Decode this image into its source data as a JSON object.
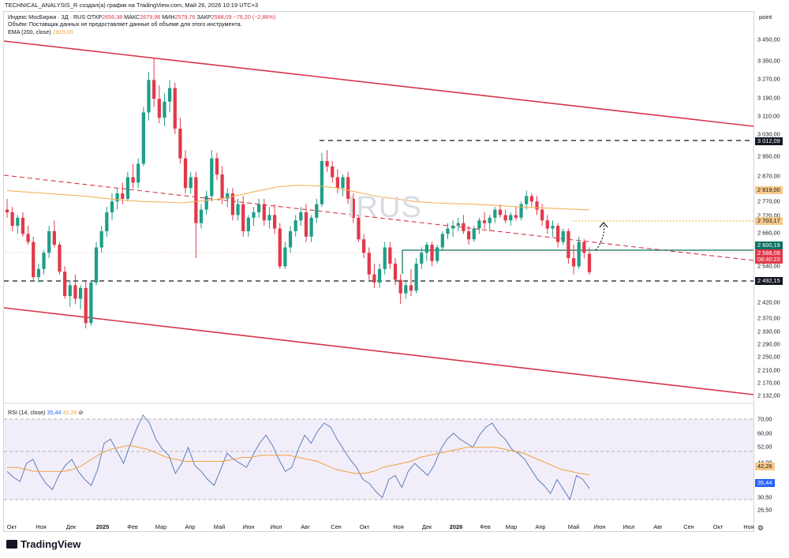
{
  "header": {
    "text": "TECHNICAL_ANALYSIS_R создал(а) график на TradingView.com, Май 26, 2026 10:19 UTC+3"
  },
  "legend": {
    "line1_prefix": "Индекс МосБиржи · 3Д · RUS",
    "open_label": "ОТКР",
    "open": "2656,38",
    "high_label": "МАКС",
    "high": "2679,98",
    "low_label": "МИН",
    "low": "2579,76",
    "close_label": "ЗАКР",
    "close": "2588,09",
    "change": "−76,20 (−2,86%)",
    "volume_note": "Объём: Поставщик данных не предоставляет данные об объеме для этого инструмента.",
    "ema_label": "EMA (200, close)",
    "ema_value": "2819,00"
  },
  "rsi_legend": {
    "label": "RSI (14, close)",
    "value1": "35,44",
    "value2": "42,26"
  },
  "watermark": "IRUS",
  "price_unit": "point",
  "price_axis_labels": [
    "3 450,00",
    "3 350,00",
    "3 270,00",
    "3 190,00",
    "3 110,00",
    "3 030,00",
    "2 950,00",
    "2 870,00",
    "2 770,00",
    "2 720,00",
    "2 660,00",
    "2 540,00",
    "2 420,00",
    "2 370,00",
    "2 330,00",
    "2 290,00",
    "2 250,00",
    "2 210,00",
    "2 170,00"
  ],
  "price_tags": {
    "res_top": "3 012,09",
    "ema": "2 819,00",
    "target": "2 703,17",
    "support_green": "2 600,19",
    "last": "2 588,09",
    "timer": "08:40:23",
    "support_low": "2 492,15",
    "channel_low": "2 132,00"
  },
  "rsi_axis_labels": [
    "70,00",
    "60,00",
    "52,00",
    "44,00",
    "30,50",
    "26,50"
  ],
  "rsi_tags": {
    "signal": "42,26",
    "rsi": "35,44"
  },
  "time_axis": [
    "Окт",
    "Ноя",
    "Дек",
    "2025",
    "Фев",
    "Мар",
    "Апр",
    "Май",
    "Июн",
    "Июл",
    "Авг",
    "Сен",
    "Окт",
    "Ноя",
    "Дек",
    "2026",
    "Фев",
    "Мар",
    "Апр",
    "Май",
    "Июн",
    "Июл",
    "Авг",
    "Сен",
    "Окт",
    "Ноя"
  ],
  "footer": {
    "logo": "TradingView"
  },
  "colors": {
    "up": "#1f9e89",
    "down": "#e1394a",
    "ema": "#f2b25c",
    "channel": "#d7354a",
    "rsi": "#5b7fbf",
    "rsi_ma": "#f0a040"
  },
  "chart_data": {
    "type": "candlestick",
    "title": "Индекс МосБиржи · 3Д · RUS",
    "ylim": [
      2100,
      3480
    ],
    "candles": [
      {
        "o": 2820,
        "h": 2860,
        "l": 2790,
        "c": 2810
      },
      {
        "o": 2810,
        "h": 2830,
        "l": 2740,
        "c": 2760
      },
      {
        "o": 2760,
        "h": 2800,
        "l": 2730,
        "c": 2790
      },
      {
        "o": 2790,
        "h": 2810,
        "l": 2720,
        "c": 2730
      },
      {
        "o": 2730,
        "h": 2760,
        "l": 2690,
        "c": 2700
      },
      {
        "o": 2700,
        "h": 2720,
        "l": 2560,
        "c": 2570
      },
      {
        "o": 2570,
        "h": 2620,
        "l": 2550,
        "c": 2600
      },
      {
        "o": 2600,
        "h": 2670,
        "l": 2580,
        "c": 2660
      },
      {
        "o": 2660,
        "h": 2760,
        "l": 2640,
        "c": 2740
      },
      {
        "o": 2740,
        "h": 2780,
        "l": 2680,
        "c": 2690
      },
      {
        "o": 2690,
        "h": 2700,
        "l": 2580,
        "c": 2590
      },
      {
        "o": 2590,
        "h": 2610,
        "l": 2490,
        "c": 2500
      },
      {
        "o": 2500,
        "h": 2560,
        "l": 2460,
        "c": 2540
      },
      {
        "o": 2540,
        "h": 2580,
        "l": 2470,
        "c": 2490
      },
      {
        "o": 2490,
        "h": 2540,
        "l": 2450,
        "c": 2530
      },
      {
        "o": 2530,
        "h": 2560,
        "l": 2380,
        "c": 2400
      },
      {
        "o": 2400,
        "h": 2560,
        "l": 2390,
        "c": 2550
      },
      {
        "o": 2550,
        "h": 2700,
        "l": 2540,
        "c": 2680
      },
      {
        "o": 2680,
        "h": 2760,
        "l": 2660,
        "c": 2740
      },
      {
        "o": 2740,
        "h": 2830,
        "l": 2720,
        "c": 2810
      },
      {
        "o": 2810,
        "h": 2880,
        "l": 2780,
        "c": 2850
      },
      {
        "o": 2850,
        "h": 2900,
        "l": 2820,
        "c": 2880
      },
      {
        "o": 2880,
        "h": 2920,
        "l": 2840,
        "c": 2860
      },
      {
        "o": 2860,
        "h": 2960,
        "l": 2850,
        "c": 2940
      },
      {
        "o": 2940,
        "h": 2990,
        "l": 2900,
        "c": 2920
      },
      {
        "o": 2920,
        "h": 3010,
        "l": 2900,
        "c": 2990
      },
      {
        "o": 2990,
        "h": 3200,
        "l": 2980,
        "c": 3180
      },
      {
        "o": 3180,
        "h": 3330,
        "l": 3150,
        "c": 3300
      },
      {
        "o": 3300,
        "h": 3380,
        "l": 3200,
        "c": 3230
      },
      {
        "o": 3230,
        "h": 3280,
        "l": 3140,
        "c": 3160
      },
      {
        "o": 3160,
        "h": 3250,
        "l": 3130,
        "c": 3220
      },
      {
        "o": 3220,
        "h": 3300,
        "l": 3180,
        "c": 3270
      },
      {
        "o": 3270,
        "h": 3290,
        "l": 3100,
        "c": 3120
      },
      {
        "o": 3120,
        "h": 3160,
        "l": 2990,
        "c": 3010
      },
      {
        "o": 3010,
        "h": 3040,
        "l": 2880,
        "c": 2900
      },
      {
        "o": 2900,
        "h": 2960,
        "l": 2880,
        "c": 2940
      },
      {
        "o": 2940,
        "h": 2960,
        "l": 2640,
        "c": 2770
      },
      {
        "o": 2770,
        "h": 2840,
        "l": 2750,
        "c": 2820
      },
      {
        "o": 2820,
        "h": 2890,
        "l": 2800,
        "c": 2870
      },
      {
        "o": 2870,
        "h": 3040,
        "l": 2850,
        "c": 3010
      },
      {
        "o": 3010,
        "h": 3030,
        "l": 2930,
        "c": 2950
      },
      {
        "o": 2950,
        "h": 2980,
        "l": 2840,
        "c": 2860
      },
      {
        "o": 2860,
        "h": 2900,
        "l": 2830,
        "c": 2880
      },
      {
        "o": 2880,
        "h": 2900,
        "l": 2780,
        "c": 2800
      },
      {
        "o": 2800,
        "h": 2860,
        "l": 2780,
        "c": 2840
      },
      {
        "o": 2840,
        "h": 2870,
        "l": 2720,
        "c": 2740
      },
      {
        "o": 2740,
        "h": 2800,
        "l": 2720,
        "c": 2790
      },
      {
        "o": 2790,
        "h": 2830,
        "l": 2760,
        "c": 2810
      },
      {
        "o": 2810,
        "h": 2860,
        "l": 2790,
        "c": 2840
      },
      {
        "o": 2840,
        "h": 2860,
        "l": 2760,
        "c": 2780
      },
      {
        "o": 2780,
        "h": 2830,
        "l": 2750,
        "c": 2800
      },
      {
        "o": 2800,
        "h": 2840,
        "l": 2730,
        "c": 2750
      },
      {
        "o": 2750,
        "h": 2770,
        "l": 2600,
        "c": 2610
      },
      {
        "o": 2610,
        "h": 2700,
        "l": 2600,
        "c": 2680
      },
      {
        "o": 2680,
        "h": 2760,
        "l": 2660,
        "c": 2740
      },
      {
        "o": 2740,
        "h": 2800,
        "l": 2720,
        "c": 2780
      },
      {
        "o": 2780,
        "h": 2830,
        "l": 2760,
        "c": 2810
      },
      {
        "o": 2810,
        "h": 2840,
        "l": 2700,
        "c": 2720
      },
      {
        "o": 2720,
        "h": 2800,
        "l": 2700,
        "c": 2790
      },
      {
        "o": 2790,
        "h": 2860,
        "l": 2770,
        "c": 2840
      },
      {
        "o": 2840,
        "h": 3030,
        "l": 2830,
        "c": 3000
      },
      {
        "o": 3000,
        "h": 3040,
        "l": 2960,
        "c": 2980
      },
      {
        "o": 2980,
        "h": 3000,
        "l": 2920,
        "c": 2940
      },
      {
        "o": 2940,
        "h": 2970,
        "l": 2880,
        "c": 2900
      },
      {
        "o": 2900,
        "h": 2950,
        "l": 2870,
        "c": 2940
      },
      {
        "o": 2940,
        "h": 2960,
        "l": 2840,
        "c": 2860
      },
      {
        "o": 2860,
        "h": 2880,
        "l": 2770,
        "c": 2790
      },
      {
        "o": 2790,
        "h": 2800,
        "l": 2700,
        "c": 2710
      },
      {
        "o": 2710,
        "h": 2730,
        "l": 2640,
        "c": 2660
      },
      {
        "o": 2660,
        "h": 2680,
        "l": 2560,
        "c": 2580
      },
      {
        "o": 2580,
        "h": 2620,
        "l": 2530,
        "c": 2550
      },
      {
        "o": 2550,
        "h": 2620,
        "l": 2530,
        "c": 2600
      },
      {
        "o": 2600,
        "h": 2700,
        "l": 2580,
        "c": 2680
      },
      {
        "o": 2680,
        "h": 2700,
        "l": 2600,
        "c": 2620
      },
      {
        "o": 2620,
        "h": 2640,
        "l": 2540,
        "c": 2560
      },
      {
        "o": 2560,
        "h": 2580,
        "l": 2470,
        "c": 2510
      },
      {
        "o": 2510,
        "h": 2560,
        "l": 2490,
        "c": 2540
      },
      {
        "o": 2540,
        "h": 2600,
        "l": 2500,
        "c": 2520
      },
      {
        "o": 2520,
        "h": 2640,
        "l": 2510,
        "c": 2620
      },
      {
        "o": 2620,
        "h": 2680,
        "l": 2600,
        "c": 2660
      },
      {
        "o": 2660,
        "h": 2700,
        "l": 2630,
        "c": 2690
      },
      {
        "o": 2690,
        "h": 2700,
        "l": 2610,
        "c": 2630
      },
      {
        "o": 2630,
        "h": 2690,
        "l": 2620,
        "c": 2680
      },
      {
        "o": 2680,
        "h": 2740,
        "l": 2670,
        "c": 2730
      },
      {
        "o": 2730,
        "h": 2770,
        "l": 2710,
        "c": 2750
      },
      {
        "o": 2750,
        "h": 2780,
        "l": 2720,
        "c": 2760
      },
      {
        "o": 2760,
        "h": 2790,
        "l": 2740,
        "c": 2770
      },
      {
        "o": 2770,
        "h": 2800,
        "l": 2730,
        "c": 2740
      },
      {
        "o": 2740,
        "h": 2760,
        "l": 2690,
        "c": 2710
      },
      {
        "o": 2710,
        "h": 2760,
        "l": 2700,
        "c": 2750
      },
      {
        "o": 2750,
        "h": 2790,
        "l": 2730,
        "c": 2780
      },
      {
        "o": 2780,
        "h": 2810,
        "l": 2750,
        "c": 2770
      },
      {
        "o": 2770,
        "h": 2800,
        "l": 2740,
        "c": 2790
      },
      {
        "o": 2790,
        "h": 2830,
        "l": 2770,
        "c": 2820
      },
      {
        "o": 2820,
        "h": 2840,
        "l": 2790,
        "c": 2800
      },
      {
        "o": 2800,
        "h": 2820,
        "l": 2770,
        "c": 2780
      },
      {
        "o": 2780,
        "h": 2810,
        "l": 2760,
        "c": 2800
      },
      {
        "o": 2800,
        "h": 2830,
        "l": 2780,
        "c": 2790
      },
      {
        "o": 2790,
        "h": 2850,
        "l": 2780,
        "c": 2840
      },
      {
        "o": 2840,
        "h": 2890,
        "l": 2820,
        "c": 2870
      },
      {
        "o": 2870,
        "h": 2880,
        "l": 2830,
        "c": 2850
      },
      {
        "o": 2850,
        "h": 2870,
        "l": 2800,
        "c": 2820
      },
      {
        "o": 2820,
        "h": 2840,
        "l": 2760,
        "c": 2780
      },
      {
        "o": 2780,
        "h": 2800,
        "l": 2730,
        "c": 2750
      },
      {
        "o": 2750,
        "h": 2780,
        "l": 2720,
        "c": 2760
      },
      {
        "o": 2760,
        "h": 2770,
        "l": 2680,
        "c": 2700
      },
      {
        "o": 2700,
        "h": 2750,
        "l": 2690,
        "c": 2740
      },
      {
        "o": 2740,
        "h": 2750,
        "l": 2620,
        "c": 2640
      },
      {
        "o": 2640,
        "h": 2690,
        "l": 2580,
        "c": 2610
      },
      {
        "o": 2610,
        "h": 2720,
        "l": 2600,
        "c": 2700
      },
      {
        "o": 2700,
        "h": 2710,
        "l": 2640,
        "c": 2660
      },
      {
        "o": 2656.38,
        "h": 2679.98,
        "l": 2579.76,
        "c": 2588.09
      }
    ],
    "ema200": [
      2890,
      2885,
      2880,
      2875,
      2870,
      2862,
      2855,
      2850,
      2848,
      2845,
      2852,
      2860,
      2875,
      2890,
      2905,
      2910,
      2908,
      2900,
      2885,
      2870,
      2860,
      2850,
      2845,
      2842,
      2840,
      2836,
      2832,
      2828,
      2825,
      2822,
      2819
    ],
    "rsi": [
      44,
      41,
      39,
      48,
      50,
      43,
      38,
      35,
      42,
      47,
      50,
      44,
      40,
      37,
      45,
      58,
      60,
      54,
      48,
      57,
      65,
      72,
      68,
      60,
      55,
      52,
      43,
      48,
      56,
      47,
      44,
      40,
      37,
      45,
      53,
      50,
      48,
      46,
      52,
      58,
      62,
      57,
      50,
      44,
      46,
      55,
      62,
      58,
      64,
      68,
      66,
      60,
      55,
      50,
      46,
      40,
      38,
      34,
      31,
      40,
      42,
      36,
      44,
      48,
      45,
      42,
      47,
      55,
      60,
      63,
      60,
      58,
      56,
      62,
      66,
      68,
      63,
      60,
      55,
      53,
      50,
      45,
      40,
      37,
      33,
      40,
      35,
      30,
      42,
      40,
      35.44
    ],
    "rsi_ma": [
      46,
      46,
      45,
      44,
      44,
      44,
      44,
      45,
      47,
      50,
      53,
      55,
      56,
      57,
      56,
      55,
      53,
      51,
      50,
      49,
      49,
      49,
      49,
      49,
      50,
      51,
      51,
      52,
      52,
      52,
      52,
      51,
      50,
      49,
      47,
      45,
      44,
      43,
      43,
      44,
      46,
      47,
      48,
      49,
      51,
      52,
      53,
      54,
      55,
      56,
      56,
      56,
      56,
      55,
      54,
      53,
      51,
      49,
      47,
      45,
      44,
      43,
      42.26
    ],
    "levels": {
      "resistance": 3012.09,
      "ema": 2819.0,
      "target": 2703.17,
      "support_green": 2600.19,
      "support_low": 2492.15,
      "last": 2588.09
    },
    "rsi_bands": [
      70,
      50,
      30
    ]
  }
}
